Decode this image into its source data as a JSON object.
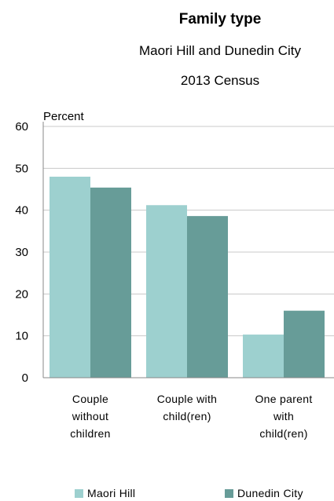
{
  "chart_data": {
    "type": "bar",
    "title": "Family type",
    "subtitle_lines": [
      "Maori Hill and Dunedin City",
      "2013 Census"
    ],
    "ylabel": "Percent",
    "ylim": [
      0,
      60
    ],
    "yticks": [
      0,
      10,
      20,
      30,
      40,
      50,
      60
    ],
    "categories": [
      [
        "Couple",
        "without",
        "children"
      ],
      [
        "Couple with",
        "child(ren)"
      ],
      [
        "One parent",
        "with",
        "child(ren)"
      ]
    ],
    "series": [
      {
        "name": "Maori Hill",
        "color": "#9dd0cf",
        "values": [
          48.0,
          41.2,
          10.3
        ]
      },
      {
        "name": "Dunedin City",
        "color": "#679c98",
        "values": [
          45.4,
          38.6,
          16.0
        ]
      }
    ],
    "grid": true,
    "legend": "bottom"
  }
}
